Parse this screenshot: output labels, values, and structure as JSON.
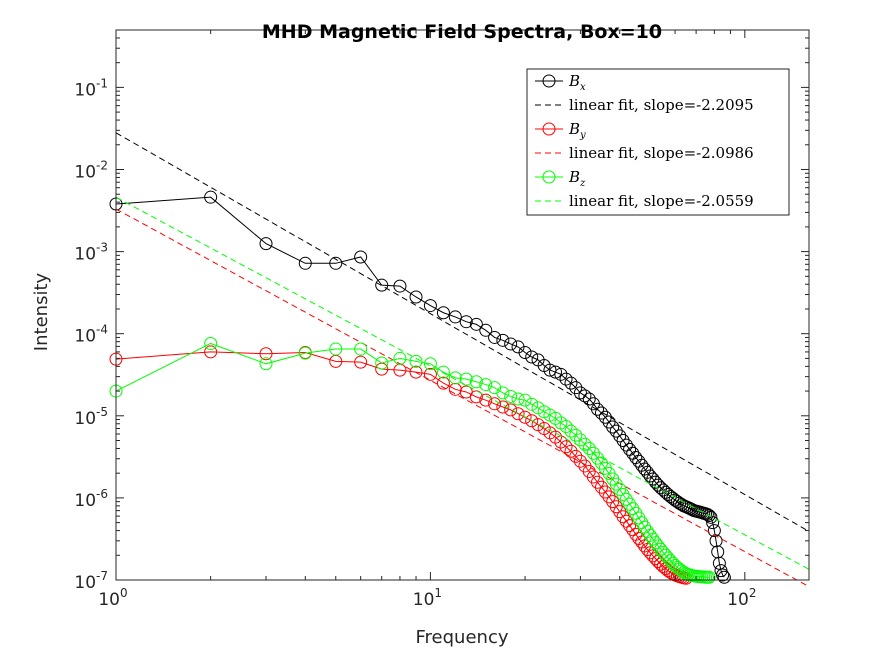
{
  "chart_data": {
    "type": "line",
    "title": "MHD Magnetic Field Spectra, Box=10",
    "xlabel": "Frequency",
    "ylabel": "Intensity",
    "xscale": "log",
    "yscale": "log",
    "xlim": [
      1,
      160
    ],
    "ylim": [
      1e-07,
      0.5
    ],
    "x_ticks": [
      1,
      10,
      100
    ],
    "x_tick_labels": [
      {
        "base": "10",
        "exp": "0"
      },
      {
        "base": "10",
        "exp": "1"
      },
      {
        "base": "10",
        "exp": "2"
      }
    ],
    "y_ticks": [
      1e-07,
      1e-06,
      1e-05,
      0.0001,
      0.001,
      0.01,
      0.1
    ],
    "y_tick_labels": [
      {
        "base": "10",
        "exp": "-7"
      },
      {
        "base": "10",
        "exp": "-6"
      },
      {
        "base": "10",
        "exp": "-5"
      },
      {
        "base": "10",
        "exp": "-4"
      },
      {
        "base": "10",
        "exp": "-3"
      },
      {
        "base": "10",
        "exp": "-2"
      },
      {
        "base": "10",
        "exp": "-1"
      }
    ],
    "grid": false,
    "legend_position": "top-right",
    "colors": {
      "bx": "#000000",
      "by": "#ff0000",
      "bz": "#00ff00"
    },
    "series": [
      {
        "name": "Bx",
        "legend_base": "B",
        "legend_sub": "x",
        "color": "#000000",
        "style": "line-circle",
        "x": [
          1,
          2,
          3,
          4,
          5,
          6,
          7,
          8,
          9,
          10,
          11,
          12,
          13,
          14,
          15,
          16,
          17,
          18,
          19,
          20,
          21,
          22,
          23,
          24,
          25,
          26,
          27,
          28,
          29,
          30,
          31,
          32,
          33,
          34,
          35,
          36,
          37,
          38,
          39,
          40,
          41,
          42,
          43,
          44,
          45,
          46,
          47,
          48,
          49,
          50,
          51,
          52,
          53,
          54,
          55,
          56,
          57,
          58,
          59,
          60,
          61,
          62,
          63,
          64,
          65,
          66,
          67,
          68,
          69,
          70,
          71,
          72,
          73,
          74,
          75,
          76,
          77,
          78,
          79,
          80,
          81,
          82,
          83,
          84,
          85,
          86
        ],
        "y": [
          0.0038,
          0.0046,
          0.00125,
          0.00072,
          0.00072,
          0.00086,
          0.00039,
          0.00038,
          0.00028,
          0.00022,
          0.00018,
          0.00016,
          0.00014,
          0.00013,
          0.00011,
          9e-05,
          8.3e-05,
          7.5e-05,
          6.9e-05,
          5.9e-05,
          5.2e-05,
          4.8e-05,
          4.1e-05,
          3.6e-05,
          3.4e-05,
          3.2e-05,
          2.8e-05,
          2.5e-05,
          2.2e-05,
          1.9e-05,
          1.75e-05,
          1.6e-05,
          1.4e-05,
          1.2e-05,
          1.08e-05,
          9.6e-06,
          8.4e-06,
          7.3e-06,
          6.5e-06,
          5.7e-06,
          5e-06,
          4.4e-06,
          3.9e-06,
          3.5e-06,
          3.1e-06,
          2.8e-06,
          2.5e-06,
          2.25e-06,
          2.05e-06,
          1.85e-06,
          1.7e-06,
          1.55e-06,
          1.43e-06,
          1.33e-06,
          1.25e-06,
          1.17e-06,
          1.1e-06,
          1.04e-06,
          9.9e-07,
          9.4e-07,
          9e-07,
          8.6e-07,
          8.3e-07,
          8e-07,
          7.8e-07,
          7.6e-07,
          7.4e-07,
          7.2e-07,
          7e-07,
          6.9e-07,
          6.8e-07,
          6.7e-07,
          6.6e-07,
          6.5e-07,
          6.4e-07,
          6.3e-07,
          6.1e-07,
          5.8e-07,
          5e-07,
          4e-07,
          3e-07,
          2.2e-07,
          1.6e-07,
          1.3e-07,
          1.15e-07,
          1.08e-07
        ]
      },
      {
        "name": "linear fit, slope=-2.2095",
        "color": "#000000",
        "style": "dashed",
        "x": [
          1,
          160
        ],
        "y": [
          0.028,
          3.9e-07
        ]
      },
      {
        "name": "By",
        "legend_base": "B",
        "legend_sub": "y",
        "color": "#ff0000",
        "style": "line-circle",
        "x": [
          1,
          2,
          3,
          4,
          5,
          6,
          7,
          8,
          9,
          10,
          11,
          12,
          13,
          14,
          15,
          16,
          17,
          18,
          19,
          20,
          21,
          22,
          23,
          24,
          25,
          26,
          27,
          28,
          29,
          30,
          31,
          32,
          33,
          34,
          35,
          36,
          37,
          38,
          39,
          40,
          41,
          42,
          43,
          44,
          45,
          46,
          47,
          48,
          49,
          50,
          51,
          52,
          53,
          54,
          55,
          56,
          57,
          58,
          59,
          60,
          61,
          62,
          63,
          64,
          65
        ],
        "y": [
          4.9e-05,
          6e-05,
          5.7e-05,
          5.9e-05,
          4.6e-05,
          4.5e-05,
          3.7e-05,
          3.6e-05,
          3.4e-05,
          3.2e-05,
          2.5e-05,
          2.1e-05,
          1.95e-05,
          1.7e-05,
          1.55e-05,
          1.4e-05,
          1.28e-05,
          1.18e-05,
          1.06e-05,
          9.6e-06,
          8.7e-06,
          7.8e-06,
          7e-06,
          6.2e-06,
          5.5e-06,
          4.8e-06,
          4.2e-06,
          3.7e-06,
          3.2e-06,
          2.8e-06,
          2.45e-06,
          2.1e-06,
          1.8e-06,
          1.55e-06,
          1.35e-06,
          1.18e-06,
          1.03e-06,
          9e-07,
          7.8e-07,
          6.8e-07,
          5.9e-07,
          5.2e-07,
          4.6e-07,
          4.1e-07,
          3.6e-07,
          3.2e-07,
          2.9e-07,
          2.6e-07,
          2.35e-07,
          2.15e-07,
          1.97e-07,
          1.82e-07,
          1.68e-07,
          1.56e-07,
          1.46e-07,
          1.38e-07,
          1.3e-07,
          1.24e-07,
          1.19e-07,
          1.15e-07,
          1.12e-07,
          1.1e-07,
          1.08e-07,
          1.06e-07,
          1.05e-07
        ]
      },
      {
        "name": "linear fit, slope=-2.0986",
        "color": "#ff0000",
        "style": "dashed",
        "x": [
          1,
          160
        ],
        "y": [
          0.0033,
          8.3e-08
        ]
      },
      {
        "name": "Bz",
        "legend_base": "B",
        "legend_sub": "z",
        "color": "#00ff00",
        "style": "line-circle",
        "x": [
          1,
          2,
          3,
          4,
          5,
          6,
          7,
          8,
          9,
          10,
          11,
          12,
          13,
          14,
          15,
          16,
          17,
          18,
          19,
          20,
          21,
          22,
          23,
          24,
          25,
          26,
          27,
          28,
          29,
          30,
          31,
          32,
          33,
          34,
          35,
          36,
          37,
          38,
          39,
          40,
          41,
          42,
          43,
          44,
          45,
          46,
          47,
          48,
          49,
          50,
          51,
          52,
          53,
          54,
          55,
          56,
          57,
          58,
          59,
          60,
          61,
          62,
          63,
          64,
          65,
          66,
          67,
          68,
          69,
          70,
          71,
          72,
          73,
          74,
          75,
          76,
          77
        ],
        "y": [
          2e-05,
          7.6e-05,
          4.3e-05,
          5.8e-05,
          6.5e-05,
          6.5e-05,
          4.4e-05,
          5e-05,
          4.6e-05,
          4.3e-05,
          3.4e-05,
          2.9e-05,
          2.8e-05,
          2.6e-05,
          2.4e-05,
          2.2e-05,
          1.9e-05,
          1.72e-05,
          1.6e-05,
          1.55e-05,
          1.38e-05,
          1.25e-05,
          1.12e-05,
          1.02e-05,
          9.3e-06,
          8.2e-06,
          7.4e-06,
          6.5e-06,
          5.8e-06,
          5.1e-06,
          4.5e-06,
          4e-06,
          3.5e-06,
          3.05e-06,
          2.65e-06,
          2.3e-06,
          1.98e-06,
          1.7e-06,
          1.47e-06,
          1.27e-06,
          1.1e-06,
          9.6e-07,
          8.4e-07,
          7.4e-07,
          6.5e-07,
          5.7e-07,
          5e-07,
          4.4e-07,
          3.9e-07,
          3.5e-07,
          3.15e-07,
          2.85e-07,
          2.6e-07,
          2.37e-07,
          2.17e-07,
          2e-07,
          1.85e-07,
          1.72e-07,
          1.6e-07,
          1.5e-07,
          1.42e-07,
          1.35e-07,
          1.29e-07,
          1.24e-07,
          1.2e-07,
          1.17e-07,
          1.15e-07,
          1.13e-07,
          1.12e-07,
          1.11e-07,
          1.1e-07,
          1.1e-07,
          1.09e-07,
          1.09e-07,
          1.08e-07,
          1.08e-07,
          1.08e-07
        ]
      },
      {
        "name": "linear fit, slope=-2.0559",
        "color": "#00ff00",
        "style": "dashed",
        "x": [
          1,
          160
        ],
        "y": [
          0.0046,
          1.35e-07
        ]
      }
    ]
  }
}
